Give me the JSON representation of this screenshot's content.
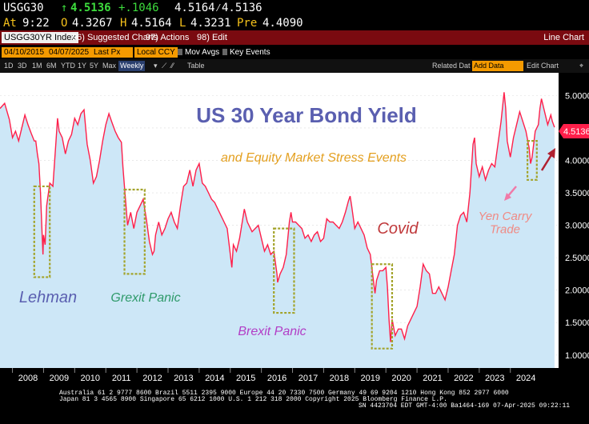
{
  "header": {
    "ticker": "USGG30",
    "arrow": "↑",
    "last": "4.5136",
    "change": "+.1046",
    "bidask": "4.5164⁄4.5136",
    "at_label": "At",
    "time": "9:22",
    "open_label": "O",
    "open": "4.3267",
    "high_label": "H",
    "high": "4.5164",
    "low_label": "L",
    "low": "4.3231",
    "prev_label": "Pre",
    "prev": "4.4090"
  },
  "toolbar": {
    "security": "USGG30YR Index",
    "suggested_charts": "96) Suggested Charts",
    "actions": "97) Actions",
    "edit": "98) Edit",
    "view_name": "Line Chart"
  },
  "settings": {
    "start_date": "04/10/2015",
    "end_date": "04/07/2025",
    "field": "Last Px",
    "currency": "Local CCY",
    "mov_avgs": "Mov Avgs",
    "key_events": "Key Events"
  },
  "periods": {
    "items": [
      "1D",
      "3D",
      "1M",
      "6M",
      "YTD",
      "1Y",
      "5Y",
      "Max"
    ],
    "frequency": "Weekly",
    "table": "Table",
    "related_data": "Related Dat",
    "add_data": "Add Data",
    "edit_chart": "Edit Chart"
  },
  "chart_data": {
    "type": "line",
    "title": "US 30 Year Bond Yield",
    "subtitle": "and Equity Market Stress Events",
    "x_ticks": [
      "2008",
      "2009",
      "2010",
      "2011",
      "2012",
      "2013",
      "2014",
      "2015",
      "2016",
      "2017",
      "2018",
      "2019",
      "2020",
      "2021",
      "2022",
      "2023",
      "2024"
    ],
    "y_ticks": [
      "5.0000",
      "4.5000",
      "4.0000",
      "3.5000",
      "3.0000",
      "2.5000",
      "2.0000",
      "1.5000",
      "1.0000"
    ],
    "ylim": [
      0.8,
      5.35
    ],
    "xlim": [
      2007.6,
      2025.55
    ],
    "last_value_label": "4.5136",
    "colors": {
      "line": "#ff1f4a",
      "area": "#cde7f7",
      "box": "#a3a32a",
      "title": "#5a5fb0",
      "subtitle": "#e4a020"
    },
    "series": [
      {
        "values": [
          [
            2007.6,
            4.8
          ],
          [
            2007.75,
            4.88
          ],
          [
            2007.9,
            4.63
          ],
          [
            2008.0,
            4.35
          ],
          [
            2008.1,
            4.45
          ],
          [
            2008.2,
            4.3
          ],
          [
            2008.3,
            4.5
          ],
          [
            2008.4,
            4.7
          ],
          [
            2008.5,
            4.55
          ],
          [
            2008.6,
            4.42
          ],
          [
            2008.7,
            4.3
          ],
          [
            2008.75,
            4.3
          ],
          [
            2008.8,
            4.1
          ],
          [
            2008.85,
            3.95
          ],
          [
            2008.9,
            3.5
          ],
          [
            2008.95,
            2.9
          ],
          [
            2008.98,
            2.55
          ],
          [
            2009.0,
            2.85
          ],
          [
            2009.05,
            2.7
          ],
          [
            2009.1,
            3.3
          ],
          [
            2009.2,
            3.65
          ],
          [
            2009.3,
            3.6
          ],
          [
            2009.4,
            4.3
          ],
          [
            2009.45,
            4.65
          ],
          [
            2009.5,
            4.45
          ],
          [
            2009.6,
            4.35
          ],
          [
            2009.7,
            4.1
          ],
          [
            2009.8,
            4.3
          ],
          [
            2009.9,
            4.4
          ],
          [
            2010.0,
            4.65
          ],
          [
            2010.1,
            4.55
          ],
          [
            2010.2,
            4.72
          ],
          [
            2010.3,
            4.78
          ],
          [
            2010.4,
            4.25
          ],
          [
            2010.5,
            4.0
          ],
          [
            2010.6,
            3.65
          ],
          [
            2010.7,
            3.75
          ],
          [
            2010.8,
            4.0
          ],
          [
            2010.9,
            4.3
          ],
          [
            2011.0,
            4.55
          ],
          [
            2011.1,
            4.72
          ],
          [
            2011.2,
            4.58
          ],
          [
            2011.3,
            4.45
          ],
          [
            2011.4,
            4.35
          ],
          [
            2011.5,
            4.28
          ],
          [
            2011.55,
            3.9
          ],
          [
            2011.6,
            3.6
          ],
          [
            2011.7,
            3.0
          ],
          [
            2011.8,
            3.2
          ],
          [
            2011.9,
            2.95
          ],
          [
            2012.0,
            3.2
          ],
          [
            2012.1,
            3.3
          ],
          [
            2012.2,
            3.4
          ],
          [
            2012.3,
            3.1
          ],
          [
            2012.4,
            2.75
          ],
          [
            2012.5,
            2.55
          ],
          [
            2012.55,
            2.6
          ],
          [
            2012.6,
            2.85
          ],
          [
            2012.7,
            3.05
          ],
          [
            2012.8,
            2.85
          ],
          [
            2012.9,
            2.95
          ],
          [
            2013.0,
            3.1
          ],
          [
            2013.1,
            3.2
          ],
          [
            2013.2,
            3.05
          ],
          [
            2013.3,
            2.95
          ],
          [
            2013.4,
            3.3
          ],
          [
            2013.5,
            3.6
          ],
          [
            2013.6,
            3.65
          ],
          [
            2013.7,
            3.85
          ],
          [
            2013.8,
            3.6
          ],
          [
            2013.9,
            3.85
          ],
          [
            2014.0,
            3.95
          ],
          [
            2014.1,
            3.65
          ],
          [
            2014.2,
            3.6
          ],
          [
            2014.3,
            3.5
          ],
          [
            2014.4,
            3.4
          ],
          [
            2014.5,
            3.35
          ],
          [
            2014.6,
            3.25
          ],
          [
            2014.7,
            3.15
          ],
          [
            2014.8,
            3.05
          ],
          [
            2014.9,
            2.95
          ],
          [
            2015.0,
            2.55
          ],
          [
            2015.05,
            2.35
          ],
          [
            2015.1,
            2.7
          ],
          [
            2015.2,
            2.6
          ],
          [
            2015.3,
            2.8
          ],
          [
            2015.45,
            3.25
          ],
          [
            2015.55,
            3.05
          ],
          [
            2015.7,
            2.9
          ],
          [
            2015.8,
            2.95
          ],
          [
            2015.9,
            3.0
          ],
          [
            2016.0,
            2.8
          ],
          [
            2016.1,
            2.6
          ],
          [
            2016.2,
            2.7
          ],
          [
            2016.3,
            2.55
          ],
          [
            2016.4,
            2.6
          ],
          [
            2016.5,
            2.25
          ],
          [
            2016.52,
            2.12
          ],
          [
            2016.6,
            2.25
          ],
          [
            2016.7,
            2.35
          ],
          [
            2016.8,
            2.55
          ],
          [
            2016.9,
            3.05
          ],
          [
            2016.95,
            3.2
          ],
          [
            2017.0,
            3.05
          ],
          [
            2017.1,
            3.05
          ],
          [
            2017.2,
            3.0
          ],
          [
            2017.3,
            2.95
          ],
          [
            2017.4,
            2.8
          ],
          [
            2017.5,
            2.85
          ],
          [
            2017.6,
            2.75
          ],
          [
            2017.7,
            2.85
          ],
          [
            2017.8,
            2.9
          ],
          [
            2017.9,
            2.75
          ],
          [
            2018.0,
            2.8
          ],
          [
            2018.1,
            3.1
          ],
          [
            2018.2,
            3.05
          ],
          [
            2018.3,
            3.05
          ],
          [
            2018.4,
            3.0
          ],
          [
            2018.5,
            2.95
          ],
          [
            2018.6,
            3.05
          ],
          [
            2018.7,
            3.2
          ],
          [
            2018.8,
            3.38
          ],
          [
            2018.85,
            3.45
          ],
          [
            2018.9,
            3.3
          ],
          [
            2019.0,
            2.95
          ],
          [
            2019.1,
            3.05
          ],
          [
            2019.2,
            2.95
          ],
          [
            2019.3,
            2.85
          ],
          [
            2019.4,
            2.65
          ],
          [
            2019.5,
            2.55
          ],
          [
            2019.6,
            2.15
          ],
          [
            2019.65,
            1.95
          ],
          [
            2019.7,
            2.15
          ],
          [
            2019.8,
            2.3
          ],
          [
            2019.9,
            2.3
          ],
          [
            2020.0,
            2.35
          ],
          [
            2020.05,
            2.05
          ],
          [
            2020.1,
            1.55
          ],
          [
            2020.15,
            1.2
          ],
          [
            2020.2,
            1.55
          ],
          [
            2020.3,
            1.3
          ],
          [
            2020.4,
            1.4
          ],
          [
            2020.5,
            1.4
          ],
          [
            2020.6,
            1.25
          ],
          [
            2020.7,
            1.45
          ],
          [
            2020.8,
            1.55
          ],
          [
            2020.9,
            1.65
          ],
          [
            2021.0,
            1.75
          ],
          [
            2021.1,
            2.05
          ],
          [
            2021.2,
            2.4
          ],
          [
            2021.3,
            2.3
          ],
          [
            2021.4,
            2.25
          ],
          [
            2021.5,
            1.95
          ],
          [
            2021.6,
            1.95
          ],
          [
            2021.7,
            2.05
          ],
          [
            2021.8,
            1.95
          ],
          [
            2021.9,
            1.85
          ],
          [
            2022.0,
            2.05
          ],
          [
            2022.1,
            2.3
          ],
          [
            2022.2,
            2.55
          ],
          [
            2022.3,
            3.0
          ],
          [
            2022.4,
            3.15
          ],
          [
            2022.5,
            3.2
          ],
          [
            2022.6,
            3.05
          ],
          [
            2022.7,
            3.5
          ],
          [
            2022.8,
            4.25
          ],
          [
            2022.85,
            4.35
          ],
          [
            2022.9,
            3.95
          ],
          [
            2023.0,
            3.75
          ],
          [
            2023.1,
            3.9
          ],
          [
            2023.2,
            3.7
          ],
          [
            2023.3,
            3.85
          ],
          [
            2023.4,
            3.95
          ],
          [
            2023.5,
            3.9
          ],
          [
            2023.6,
            4.25
          ],
          [
            2023.7,
            4.6
          ],
          [
            2023.8,
            5.05
          ],
          [
            2023.85,
            4.8
          ],
          [
            2023.9,
            4.3
          ],
          [
            2024.0,
            4.05
          ],
          [
            2024.1,
            4.35
          ],
          [
            2024.2,
            4.55
          ],
          [
            2024.3,
            4.75
          ],
          [
            2024.4,
            4.6
          ],
          [
            2024.5,
            4.45
          ],
          [
            2024.6,
            4.2
          ],
          [
            2024.65,
            3.95
          ],
          [
            2024.7,
            4.05
          ],
          [
            2024.8,
            4.45
          ],
          [
            2024.9,
            4.55
          ],
          [
            2024.95,
            4.8
          ],
          [
            2025.0,
            4.95
          ],
          [
            2025.1,
            4.75
          ],
          [
            2025.2,
            4.55
          ],
          [
            2025.3,
            4.7
          ],
          [
            2025.35,
            4.6
          ],
          [
            2025.42,
            4.51
          ]
        ]
      }
    ],
    "annotations": [
      {
        "label": "Lehman",
        "box_x": [
          2008.7,
          2009.2
        ],
        "box_y": [
          2.2,
          3.6
        ],
        "color": "#5a5fb0"
      },
      {
        "label": "Grexit Panic",
        "box_x": [
          2011.6,
          2012.25
        ],
        "box_y": [
          2.25,
          3.55
        ],
        "color": "#2e9a6a"
      },
      {
        "label": "Brexit Panic",
        "box_x": [
          2016.4,
          2017.05
        ],
        "box_y": [
          1.65,
          2.95
        ],
        "color": "#b23ec6"
      },
      {
        "label": "Covid",
        "box_x": [
          2019.55,
          2020.2
        ],
        "box_y": [
          1.1,
          2.4
        ],
        "color": "#c0393b"
      },
      {
        "label": "Yen Carry Trade",
        "label_lines": [
          "Yen Carry",
          "Trade"
        ],
        "box_x": [
          2024.55,
          2024.85
        ],
        "box_y": [
          3.7,
          4.3
        ],
        "color": "#f08a84"
      }
    ]
  },
  "footer": {
    "line1": "Australia 61 2 9777 8600  Brazil 5511 2395 9000  Europe 44 20 7330 7500  Germany 49 69 9204 1210  Hong Kong 852 2977 6000",
    "line2": "Japan 81 3 4565 8900          Singapore 65 6212 1000          U.S. 1 212 318 2000          Copyright 2025 Bloomberg Finance L.P.",
    "line3": "SN 4423704 EDT  GMT-4:00 Ba1464-169 07-Apr-2025 09:22:11"
  }
}
